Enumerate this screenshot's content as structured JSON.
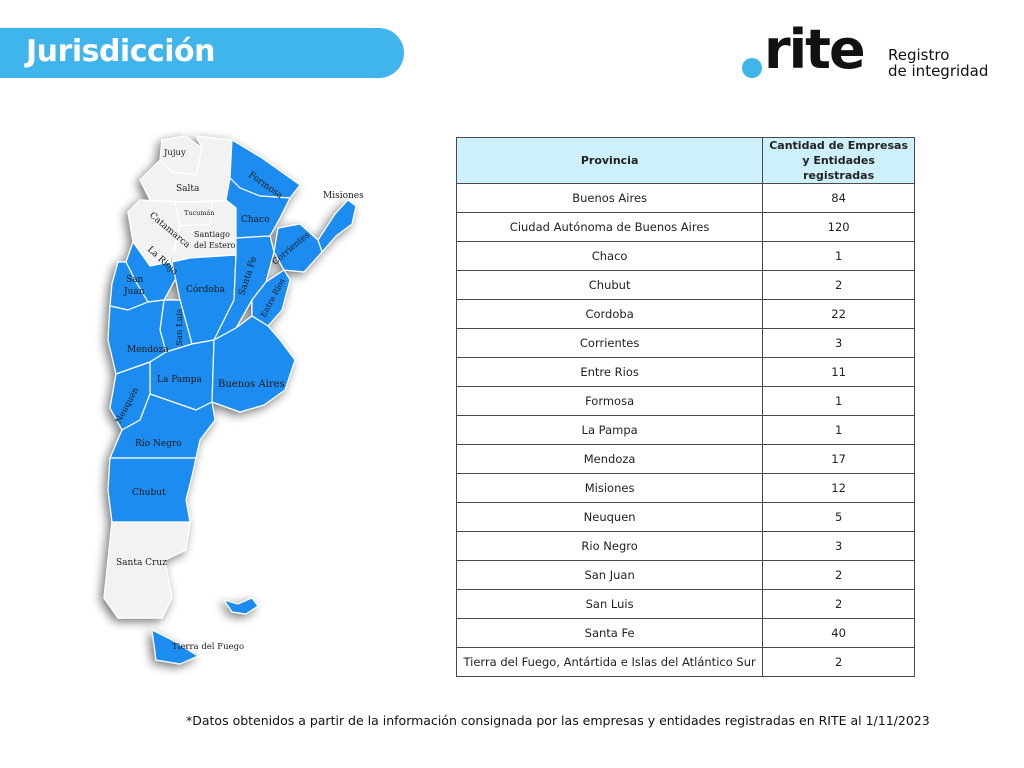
{
  "header": {
    "title": "Jurisdicción"
  },
  "logo": {
    "word": ".rite",
    "line1": "Registro",
    "line2": "de integridad"
  },
  "map": {
    "highlight_color": "#1e8cf0",
    "labels": {
      "jujuy": "Jujuy",
      "salta": "Salta",
      "formosa": "Formosa",
      "misiones": "Misiones",
      "tucuman": "Tucumán",
      "chaco": "Chaco",
      "catamarca": "Catamarca",
      "santiago1": "Santiago",
      "santiago2": "del Estero",
      "larioja": "La Rioja",
      "corrientes": "Corrientes",
      "sanjuan1": "San",
      "sanjuan2": "Juan",
      "cordoba": "Córdoba",
      "santafe": "Santa Fe",
      "entrerios": "Entre Ríos",
      "sanluis": "San Luis",
      "mendoza": "Mendoza",
      "lapampa": "La Pampa",
      "buenosaires": "Buenos Aires",
      "neuquen": "Neuquén",
      "rionegro": "Río Negro",
      "chubut": "Chubut",
      "santacruz": "Santa Cruz",
      "tierradelfuego": "Tierra del Fuego"
    }
  },
  "table": {
    "headers": [
      "Provincia",
      "Cantidad de Empresas y Entidades registradas"
    ],
    "rows": [
      [
        "Buenos Aires",
        "84"
      ],
      [
        "Ciudad Autónoma de Buenos Aires",
        "120"
      ],
      [
        "Chaco",
        "1"
      ],
      [
        "Chubut",
        "2"
      ],
      [
        "Cordoba",
        "22"
      ],
      [
        "Corrientes",
        "3"
      ],
      [
        "Entre Rios",
        "11"
      ],
      [
        "Formosa",
        "1"
      ],
      [
        "La Pampa",
        "1"
      ],
      [
        "Mendoza",
        "17"
      ],
      [
        "Misiones",
        "12"
      ],
      [
        "Neuquen",
        "5"
      ],
      [
        "Rio Negro",
        "3"
      ],
      [
        "San Juan",
        "2"
      ],
      [
        "San Luis",
        "2"
      ],
      [
        "Santa Fe",
        "40"
      ],
      [
        "Tierra del Fuego, Antártida e Islas del Atlántico Sur",
        "2"
      ]
    ]
  },
  "footnote": "*Datos obtenidos a partir de la información consignada por las empresas y entidades registradas en RITE al 1/11/2023"
}
